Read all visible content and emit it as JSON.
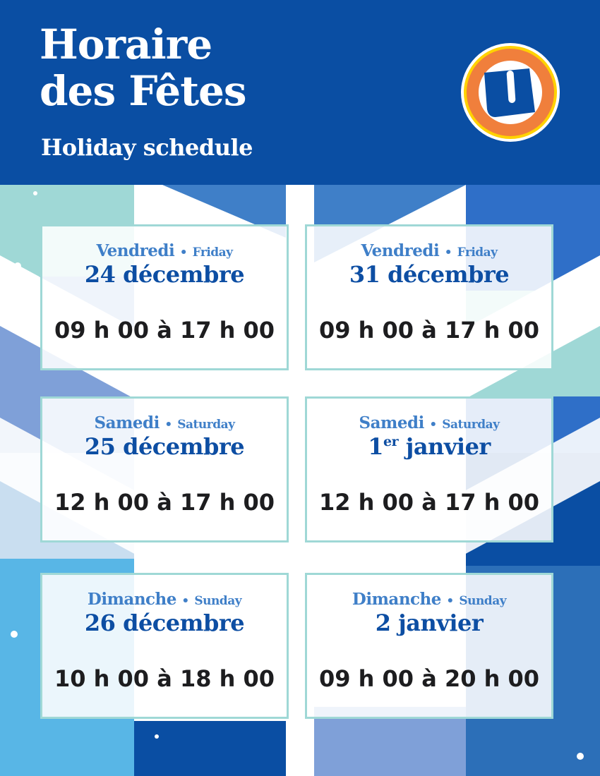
{
  "header": {
    "title_line1": "Horaire",
    "title_line2": "des Fêtes",
    "subtitle": "Holiday schedule",
    "logo_letter": "U"
  },
  "colors": {
    "brand_blue": "#0a4ea3",
    "card_border": "#9fd8d6",
    "logo_orange": "#f07f3c",
    "logo_yellow": "#ffd200"
  },
  "schedule": [
    {
      "day_fr": "Vendredi",
      "sep": "•",
      "day_en": "Friday",
      "date": "24 décembre",
      "date_sup": "",
      "hours": "09 h 00 à 17 h 00"
    },
    {
      "day_fr": "Vendredi",
      "sep": "•",
      "day_en": "Friday",
      "date": "31 décembre",
      "date_sup": "",
      "hours": "09 h 00 à 17 h 00"
    },
    {
      "day_fr": "Samedi",
      "sep": "•",
      "day_en": "Saturday",
      "date": "25 décembre",
      "date_sup": "",
      "hours": "12 h 00 à 17 h 00"
    },
    {
      "day_fr": "Samedi",
      "sep": "•",
      "day_en": "Saturday",
      "date_num": "1",
      "date_sup": "er",
      "date": " janvier",
      "hours": "12 h 00 à 17 h 00"
    },
    {
      "day_fr": "Dimanche",
      "sep": "•",
      "day_en": "Sunday",
      "date": "26 décembre",
      "date_sup": "",
      "hours": "10 h 00 à 18 h 00"
    },
    {
      "day_fr": "Dimanche",
      "sep": "•",
      "day_en": "Sunday",
      "date": "2 janvier",
      "date_sup": "",
      "hours": "09 h 00 à 20 h 00"
    }
  ]
}
